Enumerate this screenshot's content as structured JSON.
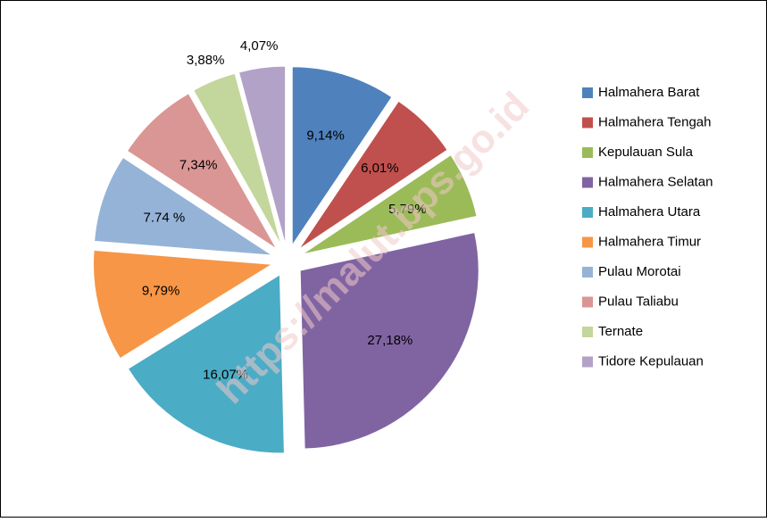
{
  "chart_data": {
    "type": "pie",
    "categories": [
      "Halmahera Barat",
      "Halmahera Tengah",
      "Kepulauan Sula",
      "Halmahera Selatan",
      "Halmahera Utara",
      "Halmahera Timur",
      "Pulau Morotai",
      "Pulau Taliabu",
      "Ternate",
      "Tidore Kepulauan"
    ],
    "values": [
      9.14,
      6.01,
      5.79,
      27.18,
      16.07,
      9.79,
      7.74,
      7.34,
      3.88,
      4.07
    ],
    "value_labels": [
      "9,14%",
      "6,01%",
      "5,79%",
      "27,18%",
      "16,07%",
      "9,79%",
      "7.74 %",
      "7,34%",
      "3,88%",
      "4,07%"
    ],
    "colors": [
      "#4f81bd",
      "#c0504d",
      "#9bbb59",
      "#8064a2",
      "#4bacc6",
      "#f79646",
      "#95b3d7",
      "#da9694",
      "#c3d69b",
      "#b3a2c7"
    ],
    "legend": "right",
    "watermark": "https://malut.bps.go.id"
  }
}
